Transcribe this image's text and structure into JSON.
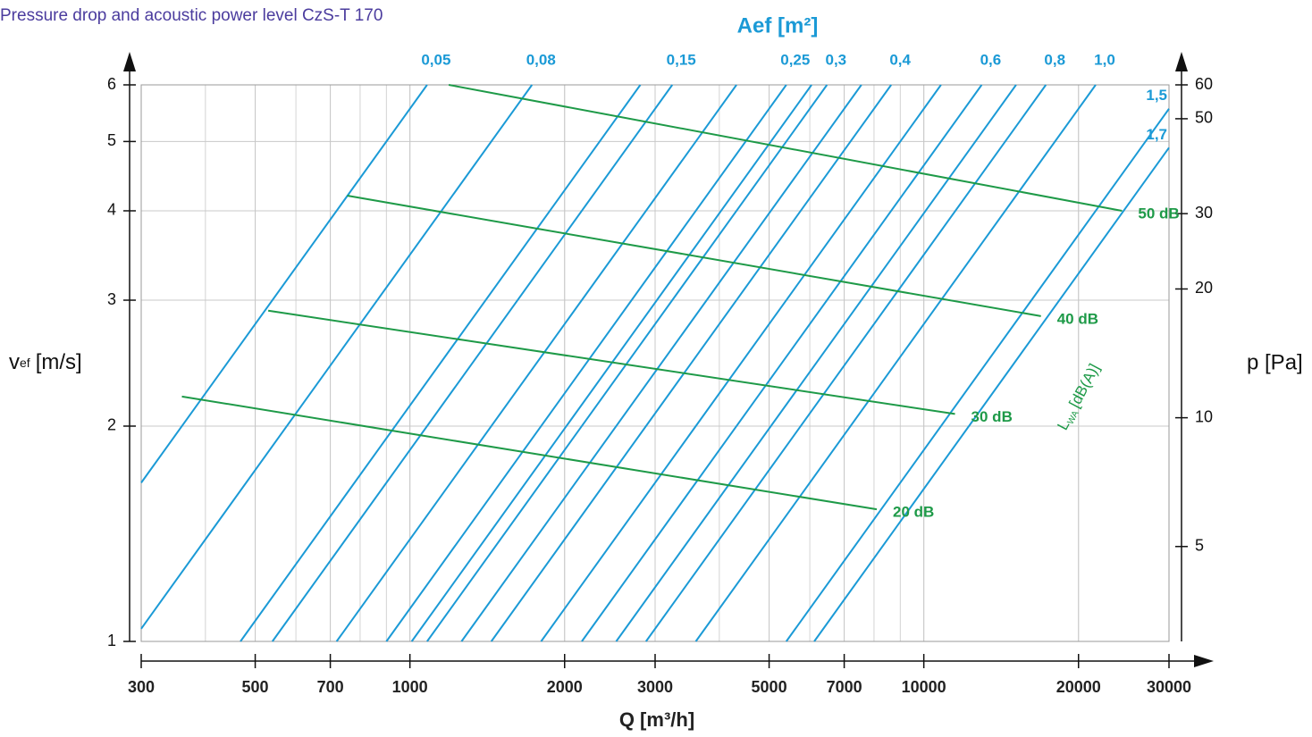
{
  "chart_data": {
    "type": "nomogram",
    "title": "Pressure drop and acoustic power level CzS-T 170",
    "top_label": "Aef [m²]",
    "xlabel": "Q [m³/h]",
    "ylabel": [
      "v",
      "ef",
      "[m/s]"
    ],
    "y2label": "p [Pa]",
    "xscale": "log",
    "yscale": "log",
    "xlim": [
      300,
      30000
    ],
    "xticks": [
      300,
      500,
      700,
      1000,
      2000,
      3000,
      5000,
      7000,
      10000,
      20000,
      30000
    ],
    "ylim": [
      1,
      6
    ],
    "yticks": [
      1,
      2,
      3,
      4,
      5,
      6
    ],
    "y2lim": [
      3,
      60
    ],
    "y2ticks": [
      5,
      10,
      20,
      30,
      50,
      60
    ],
    "grid": true,
    "aef_lines": {
      "color": "#1b9ad6",
      "values": [
        {
          "value": 0.05,
          "label": "0,05"
        },
        {
          "value": 0.08,
          "label": "0,08"
        },
        0.13,
        {
          "value": 0.15,
          "label": "0,15"
        },
        0.2,
        {
          "value": 0.25,
          "label": "0,25"
        },
        0.28,
        {
          "value": 0.3,
          "label": "0,3"
        },
        0.35,
        {
          "value": 0.4,
          "label": "0,4"
        },
        0.5,
        {
          "value": 0.6,
          "label": "0,6"
        },
        0.7,
        {
          "value": 0.8,
          "label": "0,8"
        },
        {
          "value": 1.0,
          "label": "1,0"
        },
        {
          "value": 1.5,
          "label": "1,5"
        },
        {
          "value": 1.7,
          "label": "1,7"
        }
      ]
    },
    "lwa_label": [
      "L",
      "WA",
      "[dB(A)]"
    ],
    "series": [
      {
        "name": "20 dB",
        "color": "#1e9a48",
        "x": [
          360,
          8100
        ],
        "values": [
          2.2,
          1.53
        ]
      },
      {
        "name": "30 dB",
        "color": "#1e9a48",
        "x": [
          530,
          11500
        ],
        "values": [
          2.9,
          2.08
        ]
      },
      {
        "name": "40 dB",
        "color": "#1e9a48",
        "x": [
          755,
          16900
        ],
        "values": [
          4.2,
          2.85
        ]
      },
      {
        "name": "50 dB",
        "color": "#1e9a48",
        "x": [
          1190,
          24300
        ],
        "values": [
          6,
          4.0
        ]
      }
    ]
  }
}
